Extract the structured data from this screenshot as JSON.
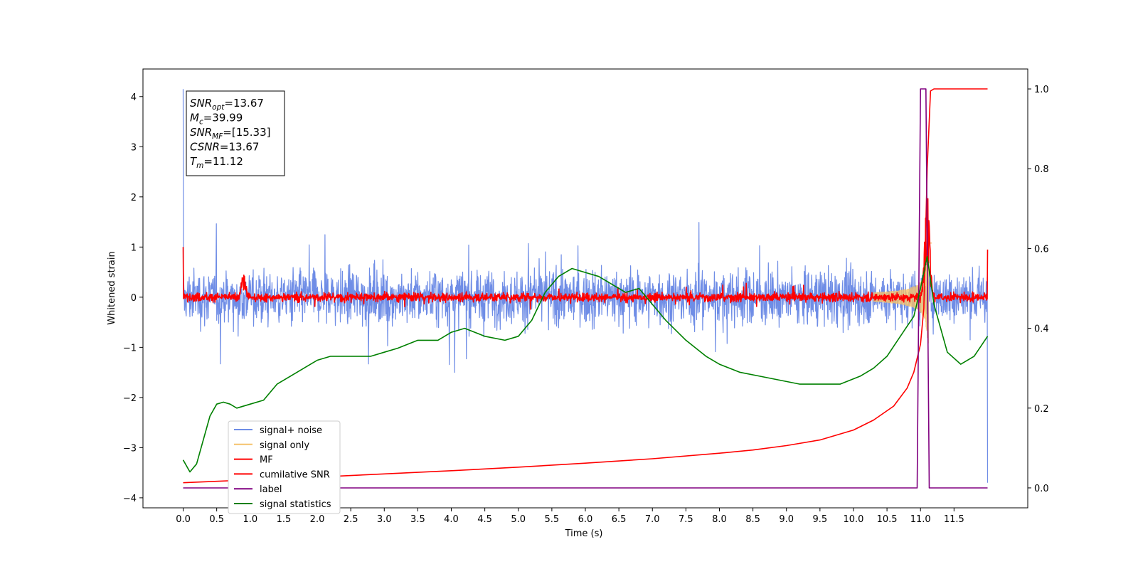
{
  "chart_data": {
    "type": "line",
    "xlabel": "Time (s)",
    "ylabel": "Whitened strain",
    "xlim": [
      -0.6,
      12.6
    ],
    "ylim": [
      -4.2,
      4.55
    ],
    "y2lim": [
      -0.05,
      1.05
    ],
    "xticks": [
      "0.0",
      "0.5",
      "1.0",
      "1.5",
      "2.0",
      "2.5",
      "3.0",
      "3.5",
      "4.0",
      "4.5",
      "5.0",
      "5.5",
      "6.0",
      "6.5",
      "7.0",
      "7.5",
      "8.0",
      "8.5",
      "9.0",
      "9.5",
      "10.0",
      "10.5",
      "11.0",
      "11.5"
    ],
    "yticks": [
      "4",
      "3",
      "2",
      "1",
      "0",
      "−1",
      "−2",
      "−3",
      "−4"
    ],
    "y2ticks": [
      "1.0",
      "0.8",
      "0.6",
      "0.4",
      "0.2",
      "0.0"
    ],
    "annotation": [
      {
        "sym": "SNR",
        "sub": "opt",
        "val": "=13.67"
      },
      {
        "sym": "M",
        "sub": "c",
        "val": "=39.99"
      },
      {
        "sym": "SNR",
        "sub": "MF",
        "val": "=[15.33]"
      },
      {
        "sym": "CSNR",
        "sub": "",
        "val": "=13.67"
      },
      {
        "sym": "T",
        "sub": "m",
        "val": "=11.12"
      }
    ],
    "series": [
      {
        "name": "signal+ noise",
        "color": "#6f8de6",
        "axis": "left",
        "kind": "noise",
        "amplitude": 0.38,
        "x_range": [
          0,
          12.0
        ]
      },
      {
        "name": "signal only",
        "color": "#f5c26b",
        "axis": "left",
        "kind": "chirp",
        "merger_time": 11.12,
        "peak": 1.2
      },
      {
        "name": "MF",
        "color": "#ff0000",
        "axis": "left",
        "kind": "noise",
        "amplitude": 0.06,
        "x_range": [
          0,
          12.0
        ],
        "bumps": [
          [
            0.9,
            0.4
          ],
          [
            11.1,
            2.0
          ]
        ]
      },
      {
        "name": "cumilative SNR",
        "color": "#ff0000",
        "axis": "right",
        "x": [
          0.0,
          1.0,
          2.0,
          3.0,
          4.0,
          5.0,
          6.0,
          7.0,
          8.0,
          8.5,
          9.0,
          9.5,
          10.0,
          10.3,
          10.6,
          10.8,
          10.9,
          11.0,
          11.05,
          11.1,
          11.15,
          11.2,
          11.5,
          12.0
        ],
        "y": [
          0.013,
          0.02,
          0.027,
          0.035,
          0.043,
          0.052,
          0.062,
          0.073,
          0.087,
          0.095,
          0.106,
          0.12,
          0.145,
          0.17,
          0.205,
          0.25,
          0.29,
          0.36,
          0.45,
          0.8,
          0.995,
          1.0,
          1.0,
          1.0
        ]
      },
      {
        "name": "label",
        "color": "#800080",
        "axis": "right",
        "x": [
          0.0,
          10.95,
          11.0,
          11.05,
          11.08,
          11.13,
          12.0
        ],
        "y": [
          0.0,
          0.0,
          1.0,
          1.0,
          1.0,
          0.0,
          0.0
        ]
      },
      {
        "name": "signal statistics",
        "color": "#008000",
        "axis": "right",
        "x": [
          0.0,
          0.1,
          0.2,
          0.3,
          0.4,
          0.5,
          0.6,
          0.7,
          0.8,
          1.0,
          1.2,
          1.4,
          1.6,
          1.8,
          2.0,
          2.2,
          2.5,
          2.8,
          3.0,
          3.2,
          3.5,
          3.8,
          4.0,
          4.2,
          4.5,
          4.8,
          5.0,
          5.2,
          5.4,
          5.6,
          5.8,
          6.0,
          6.2,
          6.4,
          6.6,
          6.8,
          7.0,
          7.2,
          7.5,
          7.8,
          8.0,
          8.3,
          8.6,
          8.9,
          9.2,
          9.5,
          9.8,
          10.1,
          10.3,
          10.5,
          10.7,
          10.9,
          11.0,
          11.1,
          11.2,
          11.4,
          11.6,
          11.8,
          12.0
        ],
        "y": [
          0.07,
          0.04,
          0.06,
          0.12,
          0.18,
          0.21,
          0.215,
          0.21,
          0.2,
          0.21,
          0.22,
          0.26,
          0.28,
          0.3,
          0.32,
          0.33,
          0.33,
          0.33,
          0.34,
          0.35,
          0.37,
          0.37,
          0.39,
          0.4,
          0.38,
          0.37,
          0.38,
          0.42,
          0.49,
          0.53,
          0.55,
          0.54,
          0.53,
          0.51,
          0.49,
          0.5,
          0.46,
          0.42,
          0.37,
          0.33,
          0.31,
          0.29,
          0.28,
          0.27,
          0.26,
          0.26,
          0.26,
          0.28,
          0.3,
          0.33,
          0.38,
          0.43,
          0.5,
          0.58,
          0.46,
          0.34,
          0.31,
          0.33,
          0.38
        ]
      }
    ],
    "legend": {
      "placement": "lower-left",
      "labels": [
        "signal+ noise",
        "signal only",
        "MF",
        "cumilative SNR",
        "label",
        "signal statistics"
      ]
    },
    "grid": false
  }
}
